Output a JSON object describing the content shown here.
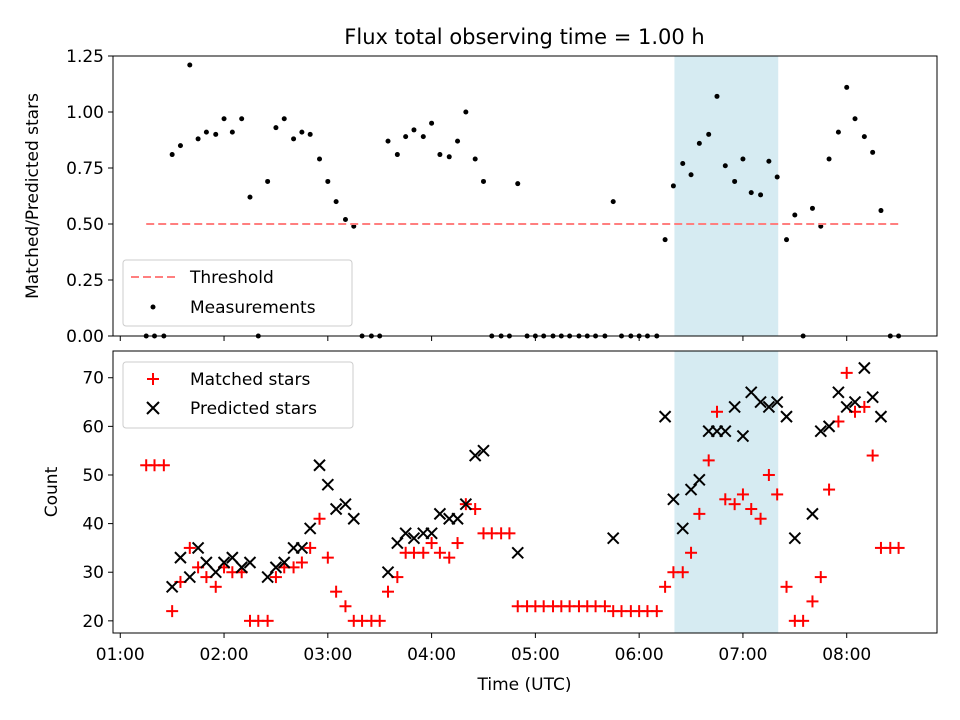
{
  "title": "Flux total observing time = 1.00 h",
  "x_axis_label": "Time (UTC)",
  "x_tick_labels": [
    "01:00",
    "02:00",
    "03:00",
    "04:00",
    "05:00",
    "06:00",
    "07:00",
    "08:00"
  ],
  "chart_data": [
    {
      "type": "scatter",
      "ylabel": "Matched/Predicted stars",
      "xlim": [
        0.93,
        8.87
      ],
      "ylim": [
        0,
        1.25
      ],
      "yticks": [
        0.0,
        0.25,
        0.5,
        0.75,
        1.0,
        1.25
      ],
      "ytick_labels": [
        "0.00",
        "0.25",
        "0.50",
        "0.75",
        "1.00",
        "1.25"
      ],
      "shaded_span": [
        6.34,
        7.34
      ],
      "legend": "lower-left",
      "threshold": {
        "name": "Threshold",
        "y": 0.5,
        "x": [
          1.25,
          8.52
        ],
        "color": "#ff7f7f",
        "style": "dashed"
      },
      "series": [
        {
          "name": "Measurements",
          "color": "#000000",
          "points": [
            [
              1.25,
              0
            ],
            [
              1.33,
              0
            ],
            [
              1.42,
              0
            ],
            [
              1.5,
              0.81
            ],
            [
              1.58,
              0.85
            ],
            [
              1.67,
              1.21
            ],
            [
              1.75,
              0.88
            ],
            [
              1.83,
              0.91
            ],
            [
              1.92,
              0.9
            ],
            [
              2.0,
              0.97
            ],
            [
              2.08,
              0.91
            ],
            [
              2.17,
              0.97
            ],
            [
              2.25,
              0.62
            ],
            [
              2.33,
              0
            ],
            [
              2.42,
              0.69
            ],
            [
              2.5,
              0.93
            ],
            [
              2.58,
              0.97
            ],
            [
              2.67,
              0.88
            ],
            [
              2.75,
              0.91
            ],
            [
              2.83,
              0.9
            ],
            [
              2.92,
              0.79
            ],
            [
              3.0,
              0.69
            ],
            [
              3.08,
              0.6
            ],
            [
              3.17,
              0.52
            ],
            [
              3.25,
              0.49
            ],
            [
              3.33,
              0
            ],
            [
              3.42,
              0
            ],
            [
              3.5,
              0
            ],
            [
              3.58,
              0.87
            ],
            [
              3.67,
              0.81
            ],
            [
              3.75,
              0.89
            ],
            [
              3.83,
              0.92
            ],
            [
              3.92,
              0.89
            ],
            [
              4.0,
              0.95
            ],
            [
              4.08,
              0.81
            ],
            [
              4.17,
              0.8
            ],
            [
              4.25,
              0.87
            ],
            [
              4.33,
              1.0
            ],
            [
              4.42,
              0.79
            ],
            [
              4.5,
              0.69
            ],
            [
              4.58,
              0
            ],
            [
              4.67,
              0
            ],
            [
              4.75,
              0
            ],
            [
              4.83,
              0.68
            ],
            [
              4.92,
              0
            ],
            [
              5.0,
              0
            ],
            [
              5.08,
              0
            ],
            [
              5.17,
              0
            ],
            [
              5.25,
              0
            ],
            [
              5.33,
              0
            ],
            [
              5.42,
              0
            ],
            [
              5.5,
              0
            ],
            [
              5.58,
              0
            ],
            [
              5.67,
              0
            ],
            [
              5.75,
              0.6
            ],
            [
              5.83,
              0
            ],
            [
              5.92,
              0
            ],
            [
              6.0,
              0
            ],
            [
              6.08,
              0
            ],
            [
              6.17,
              0
            ],
            [
              6.25,
              0.43
            ],
            [
              6.33,
              0.67
            ],
            [
              6.42,
              0.77
            ],
            [
              6.5,
              0.72
            ],
            [
              6.58,
              0.86
            ],
            [
              6.67,
              0.9
            ],
            [
              6.75,
              1.07
            ],
            [
              6.83,
              0.76
            ],
            [
              6.92,
              0.69
            ],
            [
              7.0,
              0.79
            ],
            [
              7.08,
              0.64
            ],
            [
              7.17,
              0.63
            ],
            [
              7.25,
              0.78
            ],
            [
              7.33,
              0.71
            ],
            [
              7.42,
              0.43
            ],
            [
              7.5,
              0.54
            ],
            [
              7.58,
              0
            ],
            [
              7.67,
              0.57
            ],
            [
              7.75,
              0.49
            ],
            [
              7.83,
              0.79
            ],
            [
              7.92,
              0.91
            ],
            [
              8.0,
              1.11
            ],
            [
              8.08,
              0.97
            ],
            [
              8.17,
              0.89
            ],
            [
              8.25,
              0.82
            ],
            [
              8.33,
              0.56
            ],
            [
              8.42,
              0
            ],
            [
              8.5,
              0
            ]
          ]
        }
      ]
    },
    {
      "type": "scatter",
      "ylabel": "Count",
      "xlim": [
        0.93,
        8.87
      ],
      "ylim": [
        17.5,
        75.5
      ],
      "yticks": [
        20,
        30,
        40,
        50,
        60,
        70
      ],
      "ytick_labels": [
        "20",
        "30",
        "40",
        "50",
        "60",
        "70"
      ],
      "shaded_span": [
        6.34,
        7.34
      ],
      "legend": "upper-left",
      "series": [
        {
          "name": "Matched stars",
          "marker": "plus",
          "color": "#ff0000",
          "points": [
            [
              1.25,
              52
            ],
            [
              1.33,
              52
            ],
            [
              1.42,
              52
            ],
            [
              1.5,
              22
            ],
            [
              1.58,
              28
            ],
            [
              1.67,
              35
            ],
            [
              1.75,
              31
            ],
            [
              1.83,
              29
            ],
            [
              1.92,
              27
            ],
            [
              2.0,
              31
            ],
            [
              2.08,
              30
            ],
            [
              2.17,
              30
            ],
            [
              2.25,
              20
            ],
            [
              2.33,
              20
            ],
            [
              2.42,
              20
            ],
            [
              2.5,
              29
            ],
            [
              2.58,
              31
            ],
            [
              2.67,
              31
            ],
            [
              2.75,
              32
            ],
            [
              2.83,
              35
            ],
            [
              2.92,
              41
            ],
            [
              3.0,
              33
            ],
            [
              3.08,
              26
            ],
            [
              3.17,
              23
            ],
            [
              3.25,
              20
            ],
            [
              3.33,
              20
            ],
            [
              3.42,
              20
            ],
            [
              3.5,
              20
            ],
            [
              3.58,
              26
            ],
            [
              3.67,
              29
            ],
            [
              3.75,
              34
            ],
            [
              3.83,
              34
            ],
            [
              3.92,
              34
            ],
            [
              4.0,
              36
            ],
            [
              4.08,
              34
            ],
            [
              4.17,
              33
            ],
            [
              4.25,
              36
            ],
            [
              4.33,
              44
            ],
            [
              4.42,
              43
            ],
            [
              4.5,
              38
            ],
            [
              4.58,
              38
            ],
            [
              4.67,
              38
            ],
            [
              4.75,
              38
            ],
            [
              4.83,
              23
            ],
            [
              4.92,
              23
            ],
            [
              5.0,
              23
            ],
            [
              5.08,
              23
            ],
            [
              5.17,
              23
            ],
            [
              5.25,
              23
            ],
            [
              5.33,
              23
            ],
            [
              5.42,
              23
            ],
            [
              5.5,
              23
            ],
            [
              5.58,
              23
            ],
            [
              5.67,
              23
            ],
            [
              5.75,
              22
            ],
            [
              5.83,
              22
            ],
            [
              5.92,
              22
            ],
            [
              6.0,
              22
            ],
            [
              6.08,
              22
            ],
            [
              6.17,
              22
            ],
            [
              6.25,
              27
            ],
            [
              6.33,
              30
            ],
            [
              6.42,
              30
            ],
            [
              6.5,
              34
            ],
            [
              6.58,
              42
            ],
            [
              6.67,
              53
            ],
            [
              6.75,
              63
            ],
            [
              6.83,
              45
            ],
            [
              6.92,
              44
            ],
            [
              7.0,
              46
            ],
            [
              7.08,
              43
            ],
            [
              7.17,
              41
            ],
            [
              7.25,
              50
            ],
            [
              7.33,
              46
            ],
            [
              7.42,
              27
            ],
            [
              7.5,
              20
            ],
            [
              7.58,
              20
            ],
            [
              7.67,
              24
            ],
            [
              7.75,
              29
            ],
            [
              7.83,
              47
            ],
            [
              7.92,
              61
            ],
            [
              8.0,
              71
            ],
            [
              8.08,
              63
            ],
            [
              8.17,
              64
            ],
            [
              8.25,
              54
            ],
            [
              8.33,
              35
            ],
            [
              8.42,
              35
            ],
            [
              8.5,
              35
            ]
          ]
        },
        {
          "name": "Predicted stars",
          "marker": "x",
          "color": "#000000",
          "points": [
            [
              1.5,
              27
            ],
            [
              1.58,
              33
            ],
            [
              1.67,
              29
            ],
            [
              1.75,
              35
            ],
            [
              1.83,
              32
            ],
            [
              1.92,
              30
            ],
            [
              2.0,
              32
            ],
            [
              2.08,
              33
            ],
            [
              2.17,
              31
            ],
            [
              2.25,
              32
            ],
            [
              2.42,
              29
            ],
            [
              2.5,
              31
            ],
            [
              2.58,
              32
            ],
            [
              2.67,
              35
            ],
            [
              2.75,
              35
            ],
            [
              2.83,
              39
            ],
            [
              2.92,
              52
            ],
            [
              3.0,
              48
            ],
            [
              3.08,
              43
            ],
            [
              3.17,
              44
            ],
            [
              3.25,
              41
            ],
            [
              3.58,
              30
            ],
            [
              3.67,
              36
            ],
            [
              3.75,
              38
            ],
            [
              3.83,
              37
            ],
            [
              3.92,
              38
            ],
            [
              4.0,
              38
            ],
            [
              4.08,
              42
            ],
            [
              4.17,
              41
            ],
            [
              4.25,
              41
            ],
            [
              4.33,
              44
            ],
            [
              4.42,
              54
            ],
            [
              4.5,
              55
            ],
            [
              4.83,
              34
            ],
            [
              5.75,
              37
            ],
            [
              6.25,
              62
            ],
            [
              6.33,
              45
            ],
            [
              6.42,
              39
            ],
            [
              6.5,
              47
            ],
            [
              6.58,
              49
            ],
            [
              6.67,
              59
            ],
            [
              6.75,
              59
            ],
            [
              6.83,
              59
            ],
            [
              6.92,
              64
            ],
            [
              7.0,
              58
            ],
            [
              7.08,
              67
            ],
            [
              7.17,
              65
            ],
            [
              7.25,
              64
            ],
            [
              7.33,
              65
            ],
            [
              7.42,
              62
            ],
            [
              7.5,
              37
            ],
            [
              7.67,
              42
            ],
            [
              7.75,
              59
            ],
            [
              7.83,
              60
            ],
            [
              7.92,
              67
            ],
            [
              8.0,
              64
            ],
            [
              8.08,
              65
            ],
            [
              8.17,
              72
            ],
            [
              8.25,
              66
            ],
            [
              8.33,
              62
            ]
          ]
        }
      ]
    }
  ]
}
